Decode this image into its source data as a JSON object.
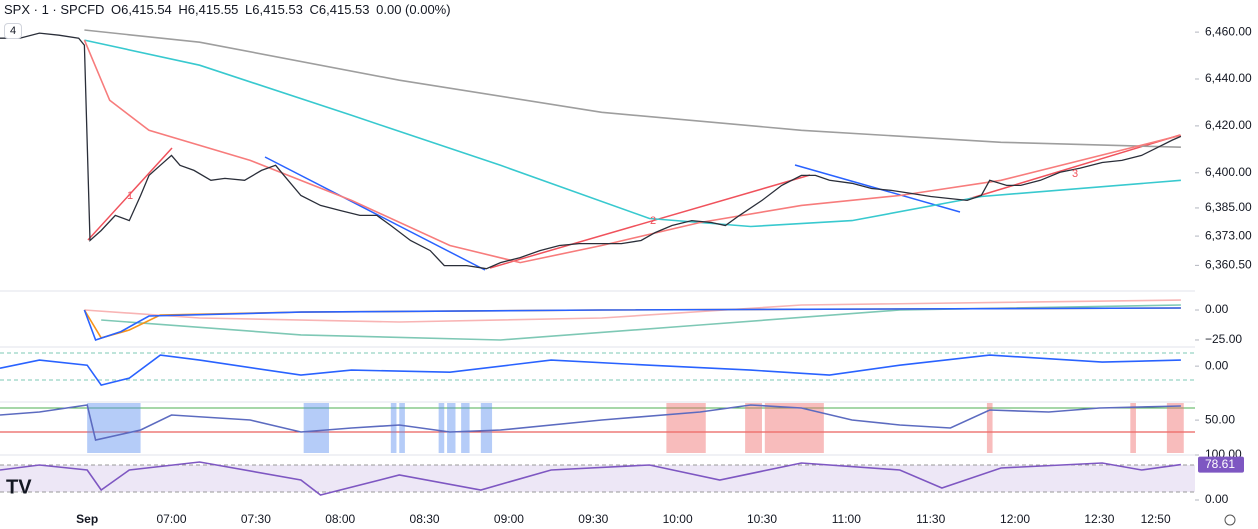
{
  "header": {
    "symbol": "SPX · 1 · SPCFD",
    "open_label": "O",
    "open": "6,415.54",
    "high_label": "H",
    "high": "6,415.55",
    "low_label": "L",
    "low": "6,415.53",
    "close_label": "C",
    "close": "6,415.53",
    "change": "0.00 (0.00%)",
    "layers": "4"
  },
  "chart_data": [
    {
      "type": "line",
      "xlim": [
        "05:59",
        "13:04"
      ],
      "ylim": [
        6350,
        6473.7
      ],
      "yticks": [
        {
          "value": 6460,
          "label": "6,460.00"
        },
        {
          "value": 6440,
          "label": "6,440.00"
        },
        {
          "value": 6420,
          "label": "6,420.00"
        },
        {
          "value": 6400,
          "label": "6,400.00"
        },
        {
          "value": 6385,
          "label": "6,385.00"
        },
        {
          "value": 6373,
          "label": "6,373.00"
        },
        {
          "value": 6360.5,
          "label": "6,360.50"
        }
      ],
      "xticks": [
        {
          "value": "06:30",
          "label": "Sep"
        },
        "07:00",
        "07:30",
        "08:00",
        "08:30",
        "09:00",
        "09:30",
        "10:00",
        "10:30",
        "11:00",
        "11:30",
        "12:00",
        "12:30",
        "12:50"
      ],
      "annotations": [
        "1",
        "2",
        "3"
      ],
      "series": [
        {
          "color": "#9e9e9e",
          "x": [
            "06:29",
            "07:10",
            "08:21",
            "09:33",
            "10:44",
            "11:55",
            "12:59"
          ],
          "values": [
            6460.9,
            6455.7,
            6439.5,
            6425.8,
            6418.1,
            6413.0,
            6410.9
          ]
        },
        {
          "color": "#38c9cf",
          "x": [
            "06:29",
            "07:10",
            "08:04",
            "08:57",
            "09:50",
            "10:26",
            "11:02",
            "11:48",
            "12:59"
          ],
          "values": [
            6456.6,
            6445.9,
            6424.5,
            6403.2,
            6380.5,
            6377.1,
            6379.6,
            6389.9,
            6396.8
          ]
        },
        {
          "color": "#f77c7c",
          "x": [
            "06:29",
            "06:38",
            "06:52",
            "07:28",
            "08:04",
            "08:39",
            "09:04",
            "09:33",
            "10:08",
            "10:44",
            "11:19",
            "11:55",
            "12:59"
          ],
          "values": [
            6456.6,
            6430.9,
            6418.1,
            6405.3,
            6388.2,
            6369.0,
            6361.7,
            6369.0,
            6378.8,
            6386.1,
            6390.3,
            6396.8,
            6416.0
          ]
        },
        {
          "color": "#2a2e39",
          "x": [
            "05:59",
            "06:06",
            "06:13",
            "06:20",
            "06:27",
            "06:29",
            "06:31",
            "06:35",
            "06:40",
            "06:45",
            "06:49",
            "06:52",
            "06:56",
            "07:00",
            "07:03",
            "07:08",
            "07:14",
            "07:19",
            "07:26",
            "07:32",
            "07:37",
            "07:40",
            "07:46",
            "07:53",
            "08:00",
            "08:07",
            "08:13",
            "08:18",
            "08:25",
            "08:32",
            "08:37",
            "08:45",
            "08:52",
            "08:57",
            "09:04",
            "09:11",
            "09:18",
            "09:25",
            "09:33",
            "09:40",
            "09:47",
            "09:52",
            "09:58",
            "10:05",
            "10:12",
            "10:17",
            "10:22",
            "10:30",
            "10:37",
            "10:44",
            "10:49",
            "10:54",
            "11:02",
            "11:09",
            "11:16",
            "11:23",
            "11:30",
            "11:37",
            "11:43",
            "11:48",
            "11:51",
            "11:57",
            "12:02",
            "12:09",
            "12:16",
            "12:23",
            "12:31",
            "12:38",
            "12:45",
            "12:50",
            "12:56",
            "12:59"
          ],
          "values": [
            6457.4,
            6457.4,
            6459.6,
            6458.7,
            6457.4,
            6454.4,
            6371.1,
            6375.4,
            6381.8,
            6379.6,
            6390.3,
            6398.9,
            6403.2,
            6407.4,
            6403.2,
            6401.0,
            6396.8,
            6397.6,
            6396.8,
            6401.0,
            6403.2,
            6398.9,
            6390.3,
            6386.1,
            6383.9,
            6381.8,
            6381.8,
            6377.5,
            6371.1,
            6366.8,
            6360.4,
            6360.4,
            6359.1,
            6361.7,
            6363.8,
            6366.8,
            6369.0,
            6369.8,
            6369.8,
            6369.8,
            6371.1,
            6374.5,
            6377.5,
            6379.6,
            6378.8,
            6377.5,
            6381.8,
            6388.2,
            6394.6,
            6398.9,
            6398.9,
            6396.8,
            6395.5,
            6393.3,
            6392.5,
            6391.2,
            6389.9,
            6389.0,
            6388.2,
            6390.3,
            6396.8,
            6394.6,
            6394.6,
            6396.8,
            6400.2,
            6401.9,
            6404.4,
            6405.3,
            6407.4,
            6410.4,
            6414.0,
            6415.53
          ]
        }
      ]
    },
    {
      "type": "line",
      "ylim": [
        -29.2,
        14.2
      ],
      "yticks": [
        {
          "value": 0,
          "label": "0.00"
        },
        {
          "value": -25,
          "label": "−25.00"
        }
      ],
      "series": [
        {
          "color": "#f8b4b4",
          "x": [
            "06:29",
            "07:10",
            "08:21",
            "09:33",
            "10:44",
            "12:59"
          ],
          "values": [
            0,
            -6.7,
            -10,
            -6.7,
            4.2,
            8.3
          ]
        },
        {
          "color": "#7ec8b5",
          "x": [
            "06:35",
            "07:46",
            "08:57",
            "10:08",
            "11:19",
            "12:59"
          ],
          "values": [
            -8.3,
            -20.8,
            -25,
            -12.5,
            0,
            4.2
          ]
        },
        {
          "color": "#f7931a",
          "x": [
            "06:29",
            "06:35",
            "06:45",
            "06:56",
            "07:46",
            "09:33",
            "12:59"
          ],
          "values": [
            0,
            -23.3,
            -16.7,
            -4.2,
            -1.7,
            0,
            1.7
          ]
        },
        {
          "color": "#2962ff",
          "x": [
            "06:29",
            "06:33",
            "06:42",
            "06:52",
            "07:46",
            "09:33",
            "12:59"
          ],
          "values": [
            0,
            -25,
            -18,
            -5,
            -1.7,
            0,
            1.7
          ]
        }
      ]
    },
    {
      "type": "line",
      "ylim": [
        -2.8,
        1.5
      ],
      "yticks": [
        {
          "value": 0,
          "label": "0.00"
        }
      ],
      "series": [
        {
          "color": "#2962ff",
          "x": [
            "05:59",
            "06:13",
            "06:30",
            "06:35",
            "06:45",
            "06:56",
            "07:10",
            "07:46",
            "08:04",
            "08:39",
            "09:15",
            "09:50",
            "10:26",
            "10:54",
            "11:19",
            "11:51",
            "12:31",
            "12:59"
          ],
          "values": [
            -0.17,
            0.5,
            0.08,
            -1.57,
            -0.99,
            0.91,
            0.5,
            -0.74,
            -0.33,
            -0.5,
            0.5,
            0.08,
            -0.33,
            -0.74,
            0.08,
            0.91,
            0.33,
            0.5
          ]
        }
      ]
    },
    {
      "type": "line",
      "ylim": [
        0,
        76
      ],
      "yticks": [
        {
          "value": 50,
          "label": "50.00"
        }
      ],
      "bands": [
        {
          "color": "#5b8def",
          "x": [
            "06:30",
            "06:49"
          ]
        },
        {
          "color": "#5b8def",
          "x": [
            "07:47",
            "07:56"
          ]
        },
        {
          "color": "#5b8def",
          "x": [
            "08:18",
            "08:20"
          ]
        },
        {
          "color": "#5b8def",
          "x": [
            "08:21",
            "08:23"
          ]
        },
        {
          "color": "#5b8def",
          "x": [
            "08:35",
            "08:37"
          ]
        },
        {
          "color": "#5b8def",
          "x": [
            "08:38",
            "08:41"
          ]
        },
        {
          "color": "#5b8def",
          "x": [
            "08:43",
            "08:46"
          ]
        },
        {
          "color": "#5b8def",
          "x": [
            "08:50",
            "08:54"
          ]
        },
        {
          "color": "#f06b6b",
          "x": [
            "09:56",
            "10:10"
          ]
        },
        {
          "color": "#f06b6b",
          "x": [
            "10:24",
            "10:30"
          ]
        },
        {
          "color": "#f06b6b",
          "x": [
            "10:31",
            "10:52"
          ]
        },
        {
          "color": "#f06b6b",
          "x": [
            "11:50",
            "11:52"
          ]
        },
        {
          "color": "#f06b6b",
          "x": [
            "12:41",
            "12:43"
          ]
        },
        {
          "color": "#f06b6b",
          "x": [
            "12:54",
            "13:00"
          ]
        }
      ],
      "series": [
        {
          "color": "#5c6bc0",
          "x": [
            "05:59",
            "06:13",
            "06:30",
            "06:33",
            "06:49",
            "07:00",
            "07:28",
            "07:46",
            "08:04",
            "08:21",
            "08:39",
            "08:57",
            "09:33",
            "10:08",
            "10:26",
            "10:44",
            "11:02",
            "11:19",
            "11:37",
            "11:51",
            "12:12",
            "12:30",
            "12:59"
          ],
          "values": [
            57.8,
            62.3,
            73,
            19.8,
            35,
            57.8,
            50.2,
            31.9,
            38,
            42.6,
            31.9,
            35,
            50.2,
            62.3,
            73,
            68.4,
            50.2,
            42.6,
            38,
            65.4,
            62.3,
            68.4,
            71.4
          ]
        }
      ]
    },
    {
      "type": "line",
      "ylim": [
        -26.7,
        100
      ],
      "yticks": [
        {
          "value": 100,
          "label": "100.00"
        },
        {
          "value": 0,
          "label": "0.00"
        }
      ],
      "marker": {
        "value": 78.61,
        "label": "78.61"
      },
      "series": [
        {
          "color": "#7e57c2",
          "x": [
            "05:59",
            "06:13",
            "06:30",
            "06:35",
            "06:45",
            "07:10",
            "07:46",
            "07:53",
            "08:21",
            "08:50",
            "09:15",
            "09:50",
            "10:15",
            "10:44",
            "11:19",
            "11:34",
            "11:55",
            "12:31",
            "12:45",
            "12:59"
          ],
          "values": [
            66.7,
            77.8,
            66.7,
            22.2,
            66.7,
            84.4,
            44.4,
            11.1,
            55.6,
            22.2,
            66.7,
            77.8,
            44.4,
            82.2,
            66.7,
            26.7,
            71.1,
            82.2,
            66.7,
            78.61
          ]
        }
      ]
    }
  ]
}
